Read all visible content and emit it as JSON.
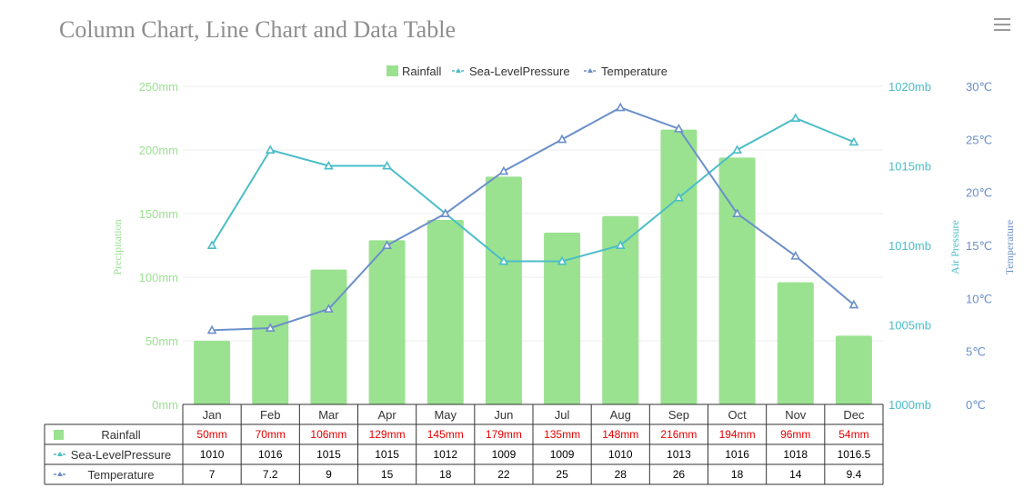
{
  "title": "Column Chart, Line Chart and Data Table",
  "menu_icon": "hamburger-menu-icon",
  "colors": {
    "rainfall": "#9ae290",
    "pressure": "#4bbdc7",
    "temperature": "#6b8fc9",
    "rainfall_text": "#e60000",
    "grid": "#ececec",
    "table_border": "#333333"
  },
  "chart_data": {
    "type": "bar",
    "categories": [
      "Jan",
      "Feb",
      "Mar",
      "Apr",
      "May",
      "Jun",
      "Jul",
      "Aug",
      "Sep",
      "Oct",
      "Nov",
      "Dec"
    ],
    "series": [
      {
        "name": "Rainfall",
        "type": "bar",
        "axis": "Precipitation",
        "unit": "mm",
        "values": [
          50,
          70,
          106,
          129,
          145,
          179,
          135,
          148,
          216,
          194,
          96,
          54
        ],
        "labels": [
          "50mm",
          "70mm",
          "106mm",
          "129mm",
          "145mm",
          "179mm",
          "135mm",
          "148mm",
          "216mm",
          "194mm",
          "96mm",
          "54mm"
        ]
      },
      {
        "name": "Sea-LevelPressure",
        "type": "line",
        "axis": "Air Pressure",
        "unit": "mb",
        "values": [
          1010,
          1016,
          1015,
          1015,
          1012,
          1009,
          1009,
          1010,
          1013,
          1016,
          1018,
          1016.5
        ],
        "labels": [
          "1010",
          "1016",
          "1015",
          "1015",
          "1012",
          "1009",
          "1009",
          "1010",
          "1013",
          "1016",
          "1018",
          "1016.5"
        ]
      },
      {
        "name": "Temperature",
        "type": "line",
        "axis": "Temperature",
        "unit": "℃",
        "values": [
          7,
          7.2,
          9,
          15,
          18,
          22,
          25,
          28,
          26,
          18,
          14,
          9.4
        ],
        "labels": [
          "7",
          "7.2",
          "9",
          "15",
          "18",
          "22",
          "25",
          "28",
          "26",
          "18",
          "14",
          "9.4"
        ]
      }
    ],
    "axes": {
      "precipitation": {
        "title": "Precipitation",
        "range": [
          0,
          250
        ],
        "ticks": [
          "0mm",
          "50mm",
          "100mm",
          "150mm",
          "200mm",
          "250mm"
        ]
      },
      "pressure": {
        "title": "Air Pressure",
        "range": [
          1000,
          1020
        ],
        "ticks": [
          "1000mb",
          "1005mb",
          "1010mb",
          "1015mb",
          "1020mb"
        ]
      },
      "temperature": {
        "title": "Temperature",
        "range": [
          0,
          30
        ],
        "ticks": [
          "0℃",
          "5℃",
          "10℃",
          "15℃",
          "20℃",
          "25℃",
          "30℃"
        ]
      }
    },
    "legend": {
      "position": "top-center",
      "items": [
        "Rainfall",
        "Sea-LevelPressure",
        "Temperature"
      ]
    },
    "grid": true
  }
}
